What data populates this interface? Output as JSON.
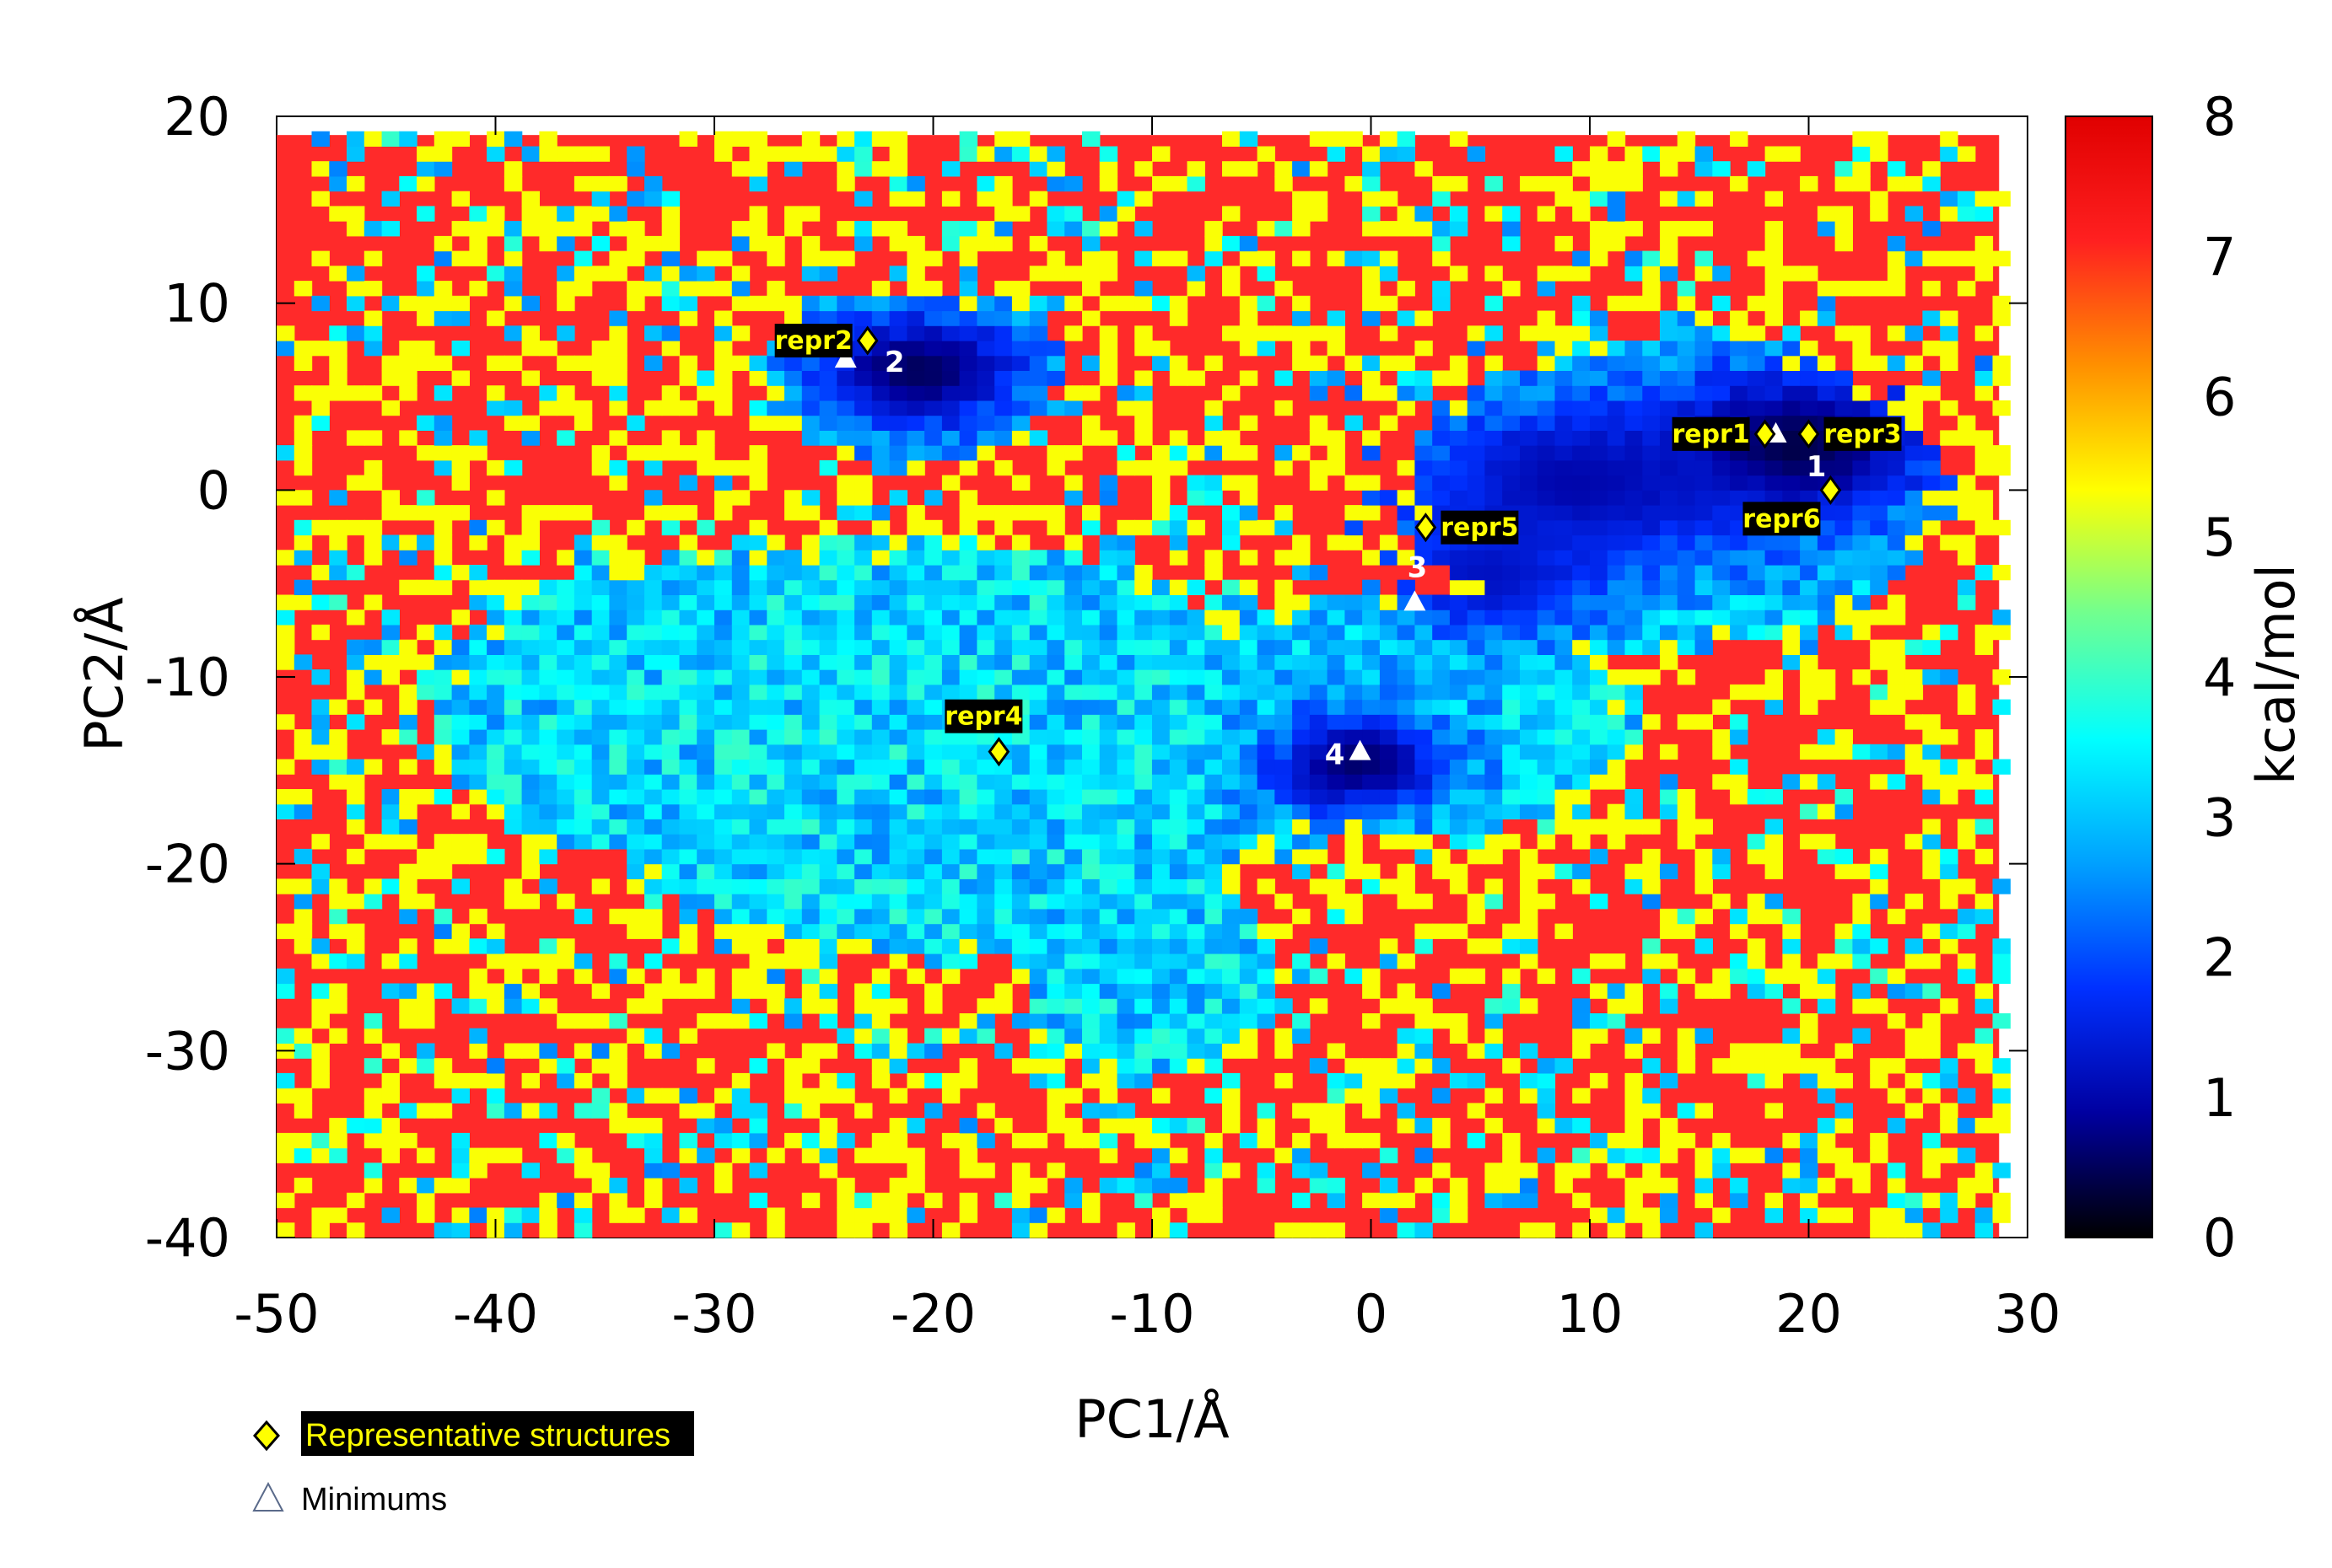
{
  "chart_data": {
    "type": "heatmap",
    "xlabel": "PC1/Å",
    "ylabel": "PC2/Å",
    "xlim": [
      -50,
      30
    ],
    "ylim": [
      -40,
      20
    ],
    "x_ticks": [
      "-50",
      "-40",
      "-30",
      "-20",
      "-10",
      "0",
      "10",
      "20",
      "30"
    ],
    "x_tick_values": [
      -50,
      -40,
      -30,
      -20,
      -10,
      0,
      10,
      20,
      30
    ],
    "y_ticks": [
      "20",
      "10",
      "0",
      "-10",
      "-20",
      "-30",
      "-40"
    ],
    "y_tick_values": [
      20,
      10,
      0,
      -10,
      -20,
      -30,
      -40
    ],
    "colorbar": {
      "label": "kcal/mol",
      "range": [
        0,
        8
      ],
      "ticks": [
        "8",
        "7",
        "6",
        "5",
        "4",
        "3",
        "2",
        "1",
        "0"
      ],
      "tick_values": [
        8,
        7,
        6,
        5,
        4,
        3,
        2,
        1,
        0
      ],
      "colors": [
        "#000000",
        "#0000a0",
        "#0030ff",
        "#00a0ff",
        "#00ffff",
        "#70ff90",
        "#ffff00",
        "#ff9000",
        "#ff2020",
        "#e00000"
      ]
    },
    "background_value": 8,
    "background_color": "#ff2a2a",
    "basins": [
      {
        "x": -21,
        "y": 6,
        "depth": 0.5,
        "sx": 5.5,
        "sy": 3.5
      },
      {
        "x": 19,
        "y": 2,
        "depth": 0.4,
        "sx": 7,
        "sy": 4.5
      },
      {
        "x": 9,
        "y": 0,
        "depth": 1.0,
        "sx": 9,
        "sy": 5
      },
      {
        "x": 5,
        "y": -5,
        "depth": 1.2,
        "sx": 5,
        "sy": 3.5
      },
      {
        "x": -1,
        "y": -15,
        "depth": 0.6,
        "sx": 4.5,
        "sy": 3
      }
    ],
    "representative_structures": [
      {
        "name": "repr1",
        "x": 18,
        "y": 3,
        "label_side": "left"
      },
      {
        "name": "repr2",
        "x": -23,
        "y": 8,
        "label_side": "left"
      },
      {
        "name": "repr3",
        "x": 20,
        "y": 3,
        "label_side": "right"
      },
      {
        "name": "repr4",
        "x": -17,
        "y": -14,
        "label_side": "above"
      },
      {
        "name": "repr5",
        "x": 2.5,
        "y": -2,
        "label_side": "right"
      },
      {
        "name": "repr6",
        "x": 21,
        "y": 0,
        "label_side": "below-left"
      }
    ],
    "minimums": [
      {
        "name": "1",
        "x": 18.5,
        "y": 3
      },
      {
        "name": "2",
        "x": -24,
        "y": 7
      },
      {
        "name": "3",
        "x": 2,
        "y": -6
      },
      {
        "name": "4",
        "x": -0.5,
        "y": -14
      }
    ],
    "legend": [
      {
        "label": "Representative structures",
        "marker": "diamond",
        "text_color": "#ffff00",
        "background": "#000000"
      },
      {
        "label": "Minimums",
        "marker": "triangle",
        "text_color": "#000000",
        "background": "none"
      }
    ],
    "legend_placement": "bottom-left, below plot"
  }
}
